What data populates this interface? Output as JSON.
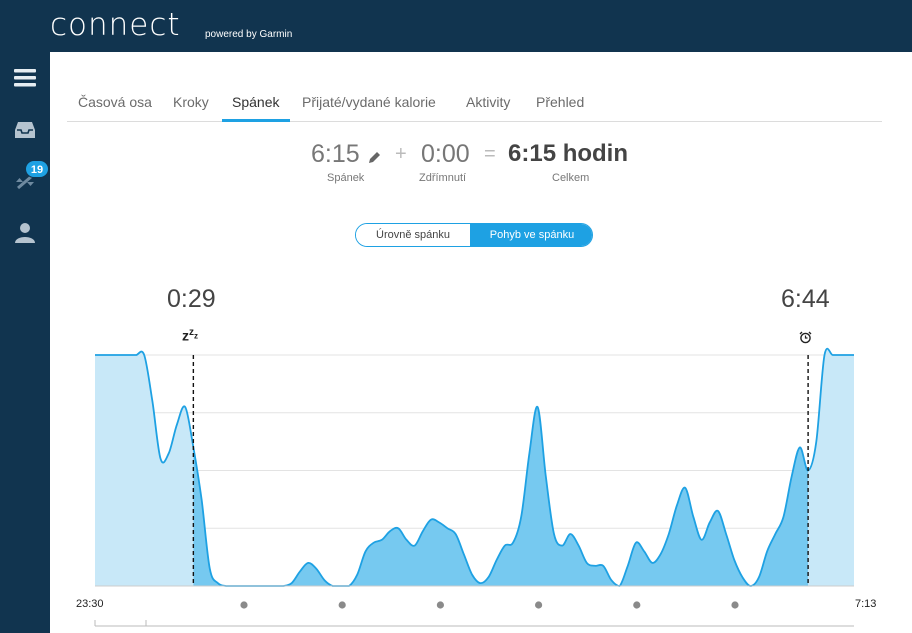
{
  "app": {
    "logo": "connect",
    "logo_sub": "powered by Garmin"
  },
  "sidebar": {
    "items": [
      {
        "icon": "hamburger-menu-icon"
      },
      {
        "icon": "inbox-icon"
      },
      {
        "icon": "sync-icon",
        "badge": "19"
      },
      {
        "icon": "user-icon"
      }
    ]
  },
  "tabs": [
    {
      "label": "Časová osa"
    },
    {
      "label": "Kroky"
    },
    {
      "label": "Spánek",
      "active": true
    },
    {
      "label": "Přijaté/vydané kalorie"
    },
    {
      "label": "Aktivity"
    },
    {
      "label": "Přehled"
    }
  ],
  "summary": {
    "sleep_value": "6:15",
    "sleep_label": "Spánek",
    "plus": "+",
    "nap_value": "0:00",
    "nap_label": "Zdřímnutí",
    "equals": "=",
    "total_value": "6:15 hodin",
    "total_label": "Celkem"
  },
  "toggle": {
    "left_label": "Úrovně spánku",
    "right_label": "Pohyb ve spánku",
    "selected": "Pohyb ve spánku"
  },
  "sleep_times": {
    "start": "0:29",
    "end": "6:44",
    "start_marker": "zzz",
    "end_marker": "alarm-clock-icon"
  },
  "colors": {
    "accent": "#1ea1e3",
    "header_bg": "#11344f",
    "area_sleep": "#76c9f0",
    "area_awake": "#c8e8f8"
  },
  "chart_data": {
    "type": "area",
    "xlabel_start": "23:30",
    "xlabel_end": "7:13",
    "x": [
      0,
      5,
      10,
      15,
      20,
      25,
      30,
      35,
      40,
      45,
      50,
      55,
      60,
      65,
      70,
      75,
      80,
      85,
      90,
      95,
      100,
      105,
      110,
      115,
      120,
      125,
      130,
      135,
      140,
      145,
      150,
      155,
      160,
      165,
      170,
      175,
      180,
      185,
      190,
      195,
      200,
      205,
      210,
      215,
      220,
      225,
      230,
      235,
      240,
      245,
      250,
      255,
      260,
      265,
      270,
      275,
      280,
      285,
      290,
      295,
      300,
      305,
      310,
      315,
      320,
      325,
      330,
      335,
      340,
      345,
      350,
      355,
      360,
      365,
      370,
      375,
      380,
      385,
      390,
      395,
      400,
      405,
      410,
      415,
      420,
      425,
      430,
      435,
      440,
      445,
      450,
      455,
      460,
      463
    ],
    "values": [
      4,
      4,
      4,
      4,
      4,
      4,
      4,
      3.2,
      2.2,
      2.3,
      2.8,
      3.1,
      2.4,
      1.5,
      0.3,
      0.05,
      0,
      0,
      0,
      0,
      0,
      0,
      0,
      0,
      0.05,
      0.25,
      0.4,
      0.3,
      0.1,
      0,
      0,
      0,
      0.2,
      0.6,
      0.75,
      0.8,
      0.95,
      1.0,
      0.8,
      0.7,
      0.95,
      1.15,
      1.1,
      1.0,
      0.9,
      0.55,
      0.2,
      0.05,
      0.15,
      0.45,
      0.7,
      0.75,
      1.2,
      2.3,
      3.1,
      1.9,
      0.9,
      0.7,
      0.9,
      0.7,
      0.4,
      0.35,
      0.35,
      0.1,
      0,
      0.35,
      0.75,
      0.6,
      0.4,
      0.55,
      0.9,
      1.4,
      1.7,
      1.2,
      0.8,
      1.1,
      1.3,
      0.9,
      0.45,
      0.15,
      0,
      0.15,
      0.6,
      0.9,
      1.2,
      1.9,
      2.4,
      2.0,
      2.5,
      4.0,
      4.0,
      4.0,
      4.0,
      4.0
    ],
    "sleep_start_x": 60,
    "sleep_end_x": 435,
    "ylim": [
      0,
      4
    ],
    "grid": true,
    "x_dots": 6
  }
}
